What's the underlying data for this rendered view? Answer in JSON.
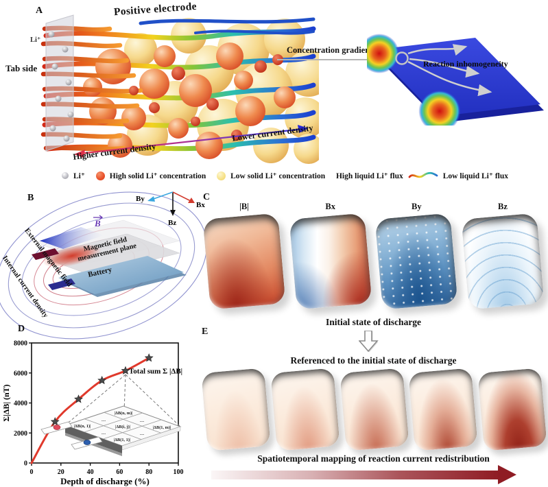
{
  "panel_a": {
    "label": "A",
    "title": "Positive electrode",
    "tab_side": "Tab side",
    "li_label": "Li⁺",
    "concentration_gradient": "Concentration gradient",
    "reaction_inhomogeneity": "Reaction inhomogeneity",
    "higher_current_density": "Higher current density",
    "lower_current_density": "Lower current density",
    "legend": {
      "li": "Li⁺",
      "high_solid": "High solid Li⁺ concentration",
      "low_solid": "Low solid Li⁺ concentration",
      "high_flux": "High liquid Li⁺ flux",
      "low_flux": "Low liquid Li⁺ flux"
    }
  },
  "panel_b": {
    "label": "B",
    "axis_bx": "Bx",
    "axis_by": "By",
    "axis_bz": "Bz",
    "b_vector": "B",
    "external_field": "External magnetic field",
    "internal_current": "Internal current density",
    "measurement_plane_line1": "Magnetic field",
    "measurement_plane_line2": "measurement plane",
    "battery": "Battery"
  },
  "panel_c": {
    "label": "C",
    "map_labels": [
      "|B|",
      "Bx",
      "By",
      "Bz"
    ],
    "caption": "Initial state of discharge"
  },
  "panel_d": {
    "label": "D",
    "inset": {
      "cell_top": "|ΔB(n, m)|",
      "cell_left": "|ΔB(n, 1)|",
      "cell_center": "|ΔB(i, j)|",
      "cell_right": "|ΔB(1, m)|",
      "cell_bottom": "|ΔB(1, 1)|",
      "dots": "…"
    }
  },
  "panel_e": {
    "label": "E",
    "caption_top": "Referenced to the initial state of discharge",
    "caption_bottom": "Spatiotemporal mapping of reaction current redistribution"
  },
  "chart_data": {
    "type": "line",
    "x": [
      0,
      16,
      32,
      48,
      64,
      80
    ],
    "y": [
      0,
      2750,
      4250,
      5500,
      6150,
      7000
    ],
    "title": "",
    "xlabel": "Depth of discharge (%)",
    "ylabel": "Σ|ΔB| (nT)",
    "xlim": [
      0,
      100
    ],
    "ylim": [
      0,
      8000
    ],
    "xticks": [
      0,
      20,
      40,
      60,
      80,
      100
    ],
    "yticks": [
      0,
      2000,
      4000,
      6000,
      8000
    ],
    "grid": false,
    "annotation": "Total sum Σ |ΔB|",
    "line_color": "#e0392c",
    "marker": "star",
    "marker_color": "#4a4a4a"
  },
  "colors": {
    "high_solid_dot": "#e8502a",
    "low_solid_dot": "#f6e187",
    "curve_red": "#e0392c",
    "gradient_arrow": "#8f1c24",
    "heatmap_blue": "#2b3cd2"
  }
}
